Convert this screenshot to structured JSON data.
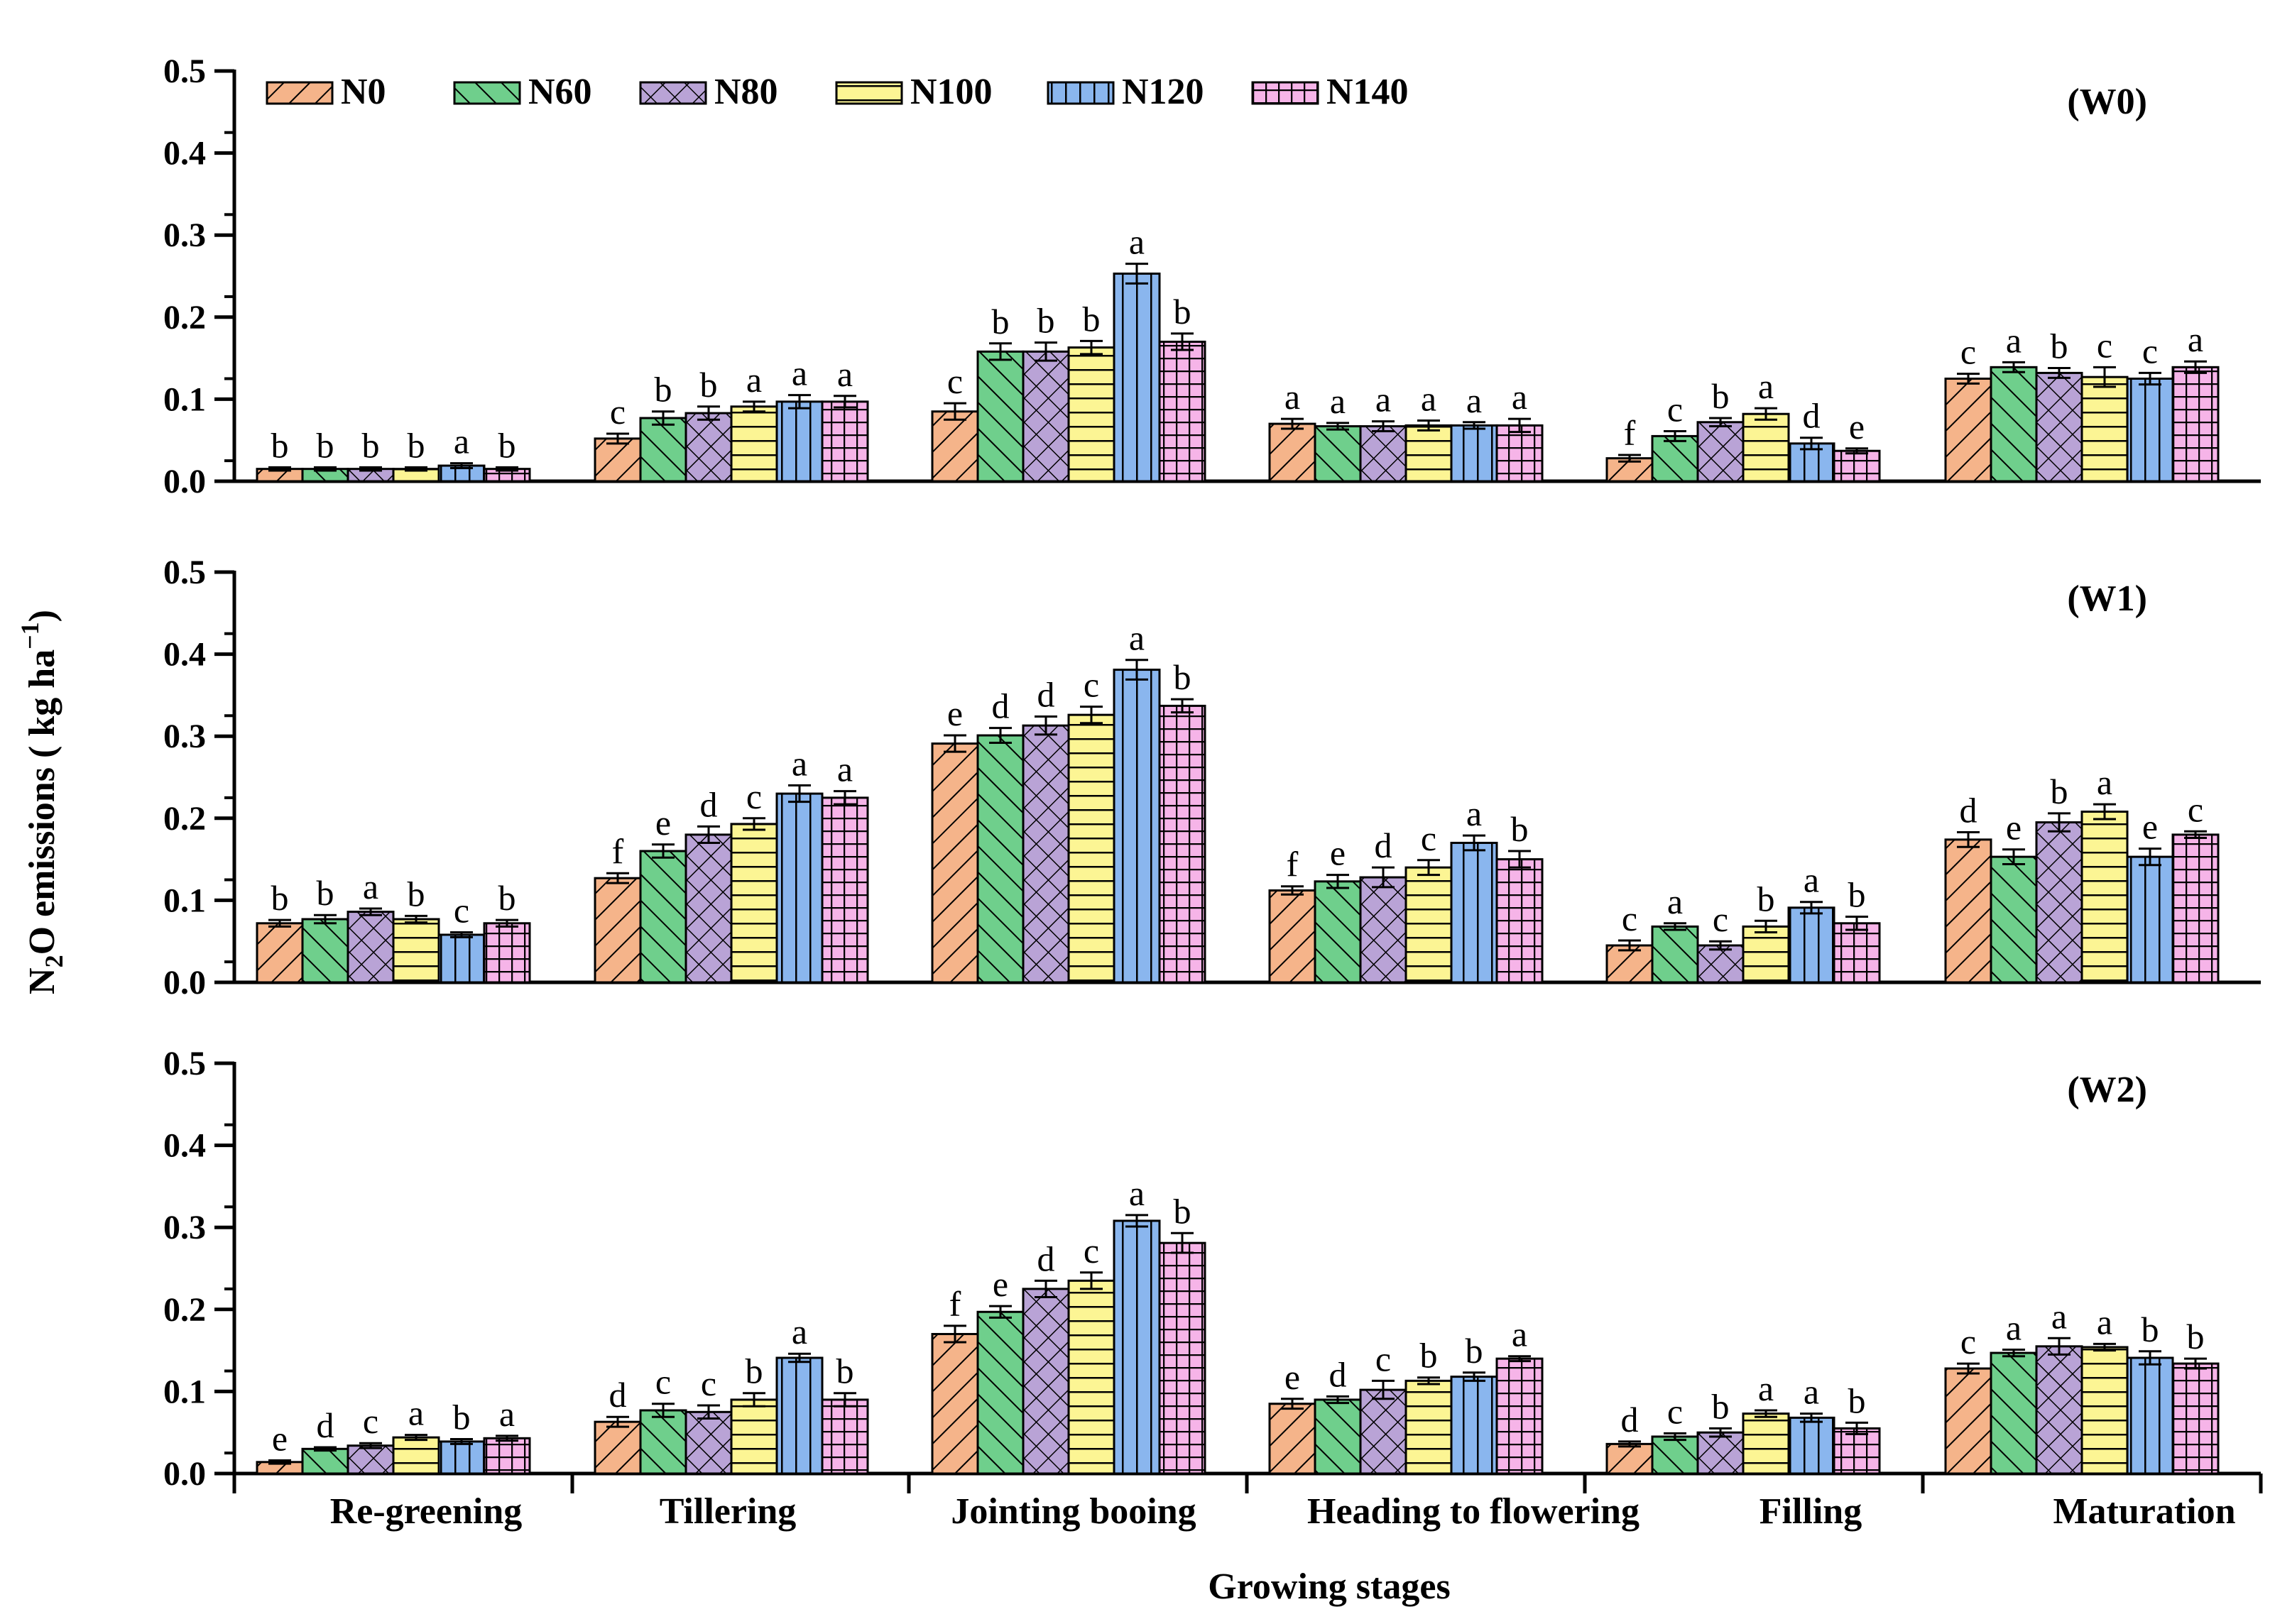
{
  "chart_data": {
    "type": "bar",
    "xlabel": "Growing stages",
    "ylabel": "N₂O emissions ( kg ha⁻¹)",
    "ylim": [
      0,
      0.5
    ],
    "yticks": [
      "0.0",
      "0.1",
      "0.2",
      "0.3",
      "0.4",
      "0.5"
    ],
    "categories": [
      "Re-greening",
      "Tillering",
      "Jointing booing",
      "Heading to flowering",
      "Filling",
      "Maturation"
    ],
    "series": [
      {
        "name": "N0",
        "color": "#f5b48a",
        "pattern": "diag"
      },
      {
        "name": "N60",
        "color": "#6fcf8c",
        "pattern": "diagrev"
      },
      {
        "name": "N80",
        "color": "#b9a3d6",
        "pattern": "cross"
      },
      {
        "name": "N100",
        "color": "#fcf594",
        "pattern": "horiz"
      },
      {
        "name": "N120",
        "color": "#8ab6ee",
        "pattern": "vert"
      },
      {
        "name": "N140",
        "color": "#f6b4e8",
        "pattern": "grid"
      }
    ],
    "panels": [
      {
        "title": "(W0)",
        "values": [
          [
            0.015,
            0.015,
            0.015,
            0.015,
            0.019,
            0.015
          ],
          [
            0.052,
            0.077,
            0.083,
            0.091,
            0.097,
            0.097
          ],
          [
            0.085,
            0.158,
            0.158,
            0.163,
            0.253,
            0.17
          ],
          [
            0.07,
            0.067,
            0.067,
            0.068,
            0.068,
            0.068
          ],
          [
            0.028,
            0.055,
            0.072,
            0.082,
            0.046,
            0.037
          ],
          [
            0.125,
            0.139,
            0.132,
            0.127,
            0.125,
            0.139
          ]
        ],
        "errors": [
          [
            0.002,
            0.002,
            0.002,
            0.002,
            0.003,
            0.002
          ],
          [
            0.006,
            0.008,
            0.008,
            0.006,
            0.008,
            0.007
          ],
          [
            0.01,
            0.01,
            0.011,
            0.008,
            0.012,
            0.01
          ],
          [
            0.006,
            0.004,
            0.006,
            0.006,
            0.004,
            0.008
          ],
          [
            0.004,
            0.006,
            0.005,
            0.007,
            0.007,
            0.003
          ],
          [
            0.006,
            0.006,
            0.006,
            0.012,
            0.007,
            0.007
          ]
        ],
        "letters": [
          [
            "b",
            "b",
            "b",
            "b",
            "a",
            "b"
          ],
          [
            "c",
            "b",
            "b",
            "a",
            "a",
            "a"
          ],
          [
            "c",
            "b",
            "b",
            "b",
            "a",
            "b"
          ],
          [
            "a",
            "a",
            "a",
            "a",
            "a",
            "a"
          ],
          [
            "f",
            "c",
            "b",
            "a",
            "d",
            "e"
          ],
          [
            "c",
            "a",
            "b",
            "c",
            "c",
            "a"
          ]
        ]
      },
      {
        "title": "(W1)",
        "values": [
          [
            0.072,
            0.077,
            0.086,
            0.077,
            0.058,
            0.072
          ],
          [
            0.127,
            0.16,
            0.18,
            0.193,
            0.23,
            0.225
          ],
          [
            0.291,
            0.301,
            0.313,
            0.326,
            0.381,
            0.337
          ],
          [
            0.112,
            0.123,
            0.128,
            0.14,
            0.17,
            0.15
          ],
          [
            0.045,
            0.068,
            0.045,
            0.068,
            0.091,
            0.072
          ],
          [
            0.174,
            0.153,
            0.195,
            0.208,
            0.153,
            0.18
          ]
        ],
        "errors": [
          [
            0.004,
            0.005,
            0.004,
            0.004,
            0.003,
            0.004
          ],
          [
            0.006,
            0.008,
            0.01,
            0.007,
            0.01,
            0.008
          ],
          [
            0.01,
            0.009,
            0.011,
            0.01,
            0.012,
            0.008
          ],
          [
            0.005,
            0.008,
            0.012,
            0.009,
            0.009,
            0.01
          ],
          [
            0.006,
            0.004,
            0.005,
            0.007,
            0.007,
            0.008
          ],
          [
            0.009,
            0.009,
            0.011,
            0.009,
            0.01,
            0.004
          ]
        ],
        "letters": [
          [
            "b",
            "b",
            "a",
            "b",
            "c",
            "b"
          ],
          [
            "f",
            "e",
            "d",
            "c",
            "a",
            "a"
          ],
          [
            "e",
            "d",
            "d",
            "c",
            "a",
            "b"
          ],
          [
            "f",
            "e",
            "d",
            "c",
            "a",
            "b"
          ],
          [
            "c",
            "a",
            "c",
            "b",
            "a",
            "b"
          ],
          [
            "d",
            "e",
            "b",
            "a",
            "e",
            "c"
          ]
        ]
      },
      {
        "title": "(W2)",
        "values": [
          [
            0.014,
            0.03,
            0.034,
            0.044,
            0.039,
            0.043
          ],
          [
            0.063,
            0.077,
            0.075,
            0.09,
            0.141,
            0.09
          ],
          [
            0.17,
            0.197,
            0.225,
            0.235,
            0.308,
            0.281
          ],
          [
            0.085,
            0.09,
            0.102,
            0.113,
            0.118,
            0.14
          ],
          [
            0.036,
            0.045,
            0.05,
            0.073,
            0.068,
            0.055
          ],
          [
            0.128,
            0.147,
            0.155,
            0.154,
            0.141,
            0.134
          ]
        ],
        "errors": [
          [
            0.002,
            0.002,
            0.003,
            0.003,
            0.003,
            0.003
          ],
          [
            0.006,
            0.008,
            0.008,
            0.008,
            0.005,
            0.008
          ],
          [
            0.01,
            0.007,
            0.01,
            0.01,
            0.007,
            0.012
          ],
          [
            0.006,
            0.004,
            0.011,
            0.004,
            0.005,
            0.003
          ],
          [
            0.003,
            0.004,
            0.005,
            0.004,
            0.005,
            0.007
          ],
          [
            0.006,
            0.004,
            0.01,
            0.004,
            0.008,
            0.006
          ]
        ],
        "letters": [
          [
            "e",
            "d",
            "c",
            "a",
            "b",
            "a"
          ],
          [
            "d",
            "c",
            "c",
            "b",
            "a",
            "b"
          ],
          [
            "f",
            "e",
            "d",
            "c",
            "a",
            "b"
          ],
          [
            "e",
            "d",
            "c",
            "b",
            "b",
            "a"
          ],
          [
            "d",
            "c",
            "b",
            "a",
            "a",
            "b"
          ],
          [
            "c",
            "a",
            "a",
            "a",
            "b",
            "b"
          ]
        ]
      }
    ]
  }
}
